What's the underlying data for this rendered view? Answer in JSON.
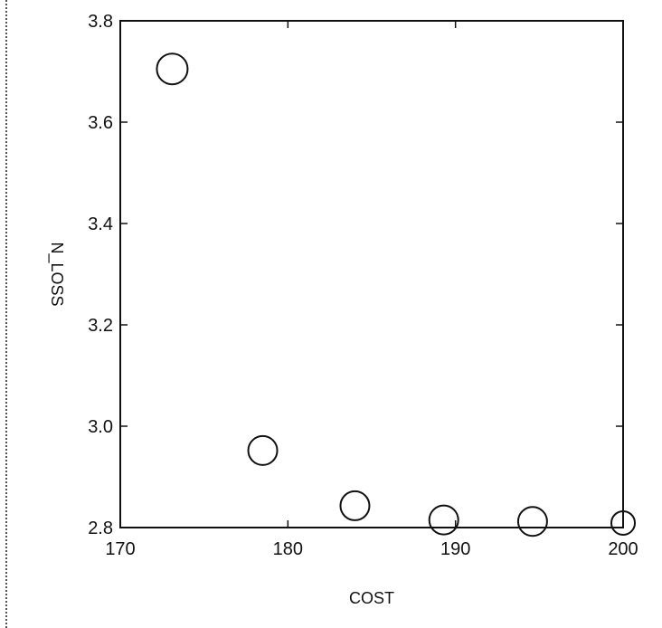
{
  "chart_data": {
    "type": "scatter",
    "title": "",
    "xlabel": "COST",
    "ylabel": "N_LOSS",
    "xlim": [
      170,
      200
    ],
    "ylim": [
      2.8,
      3.8
    ],
    "x_ticks": [
      "170",
      "180",
      "190",
      "200"
    ],
    "y_ticks": [
      "2.8",
      "3.0",
      "3.2",
      "3.4",
      "3.6",
      "3.8"
    ],
    "grid": false,
    "marker": "open-circle",
    "marker_color": "#111111",
    "points": [
      {
        "x": 173.1,
        "y": 3.705
      },
      {
        "x": 178.5,
        "y": 2.952
      },
      {
        "x": 184.0,
        "y": 2.843
      },
      {
        "x": 189.3,
        "y": 2.815
      },
      {
        "x": 194.6,
        "y": 2.812
      },
      {
        "x": 200.0,
        "y": 2.809
      }
    ]
  }
}
